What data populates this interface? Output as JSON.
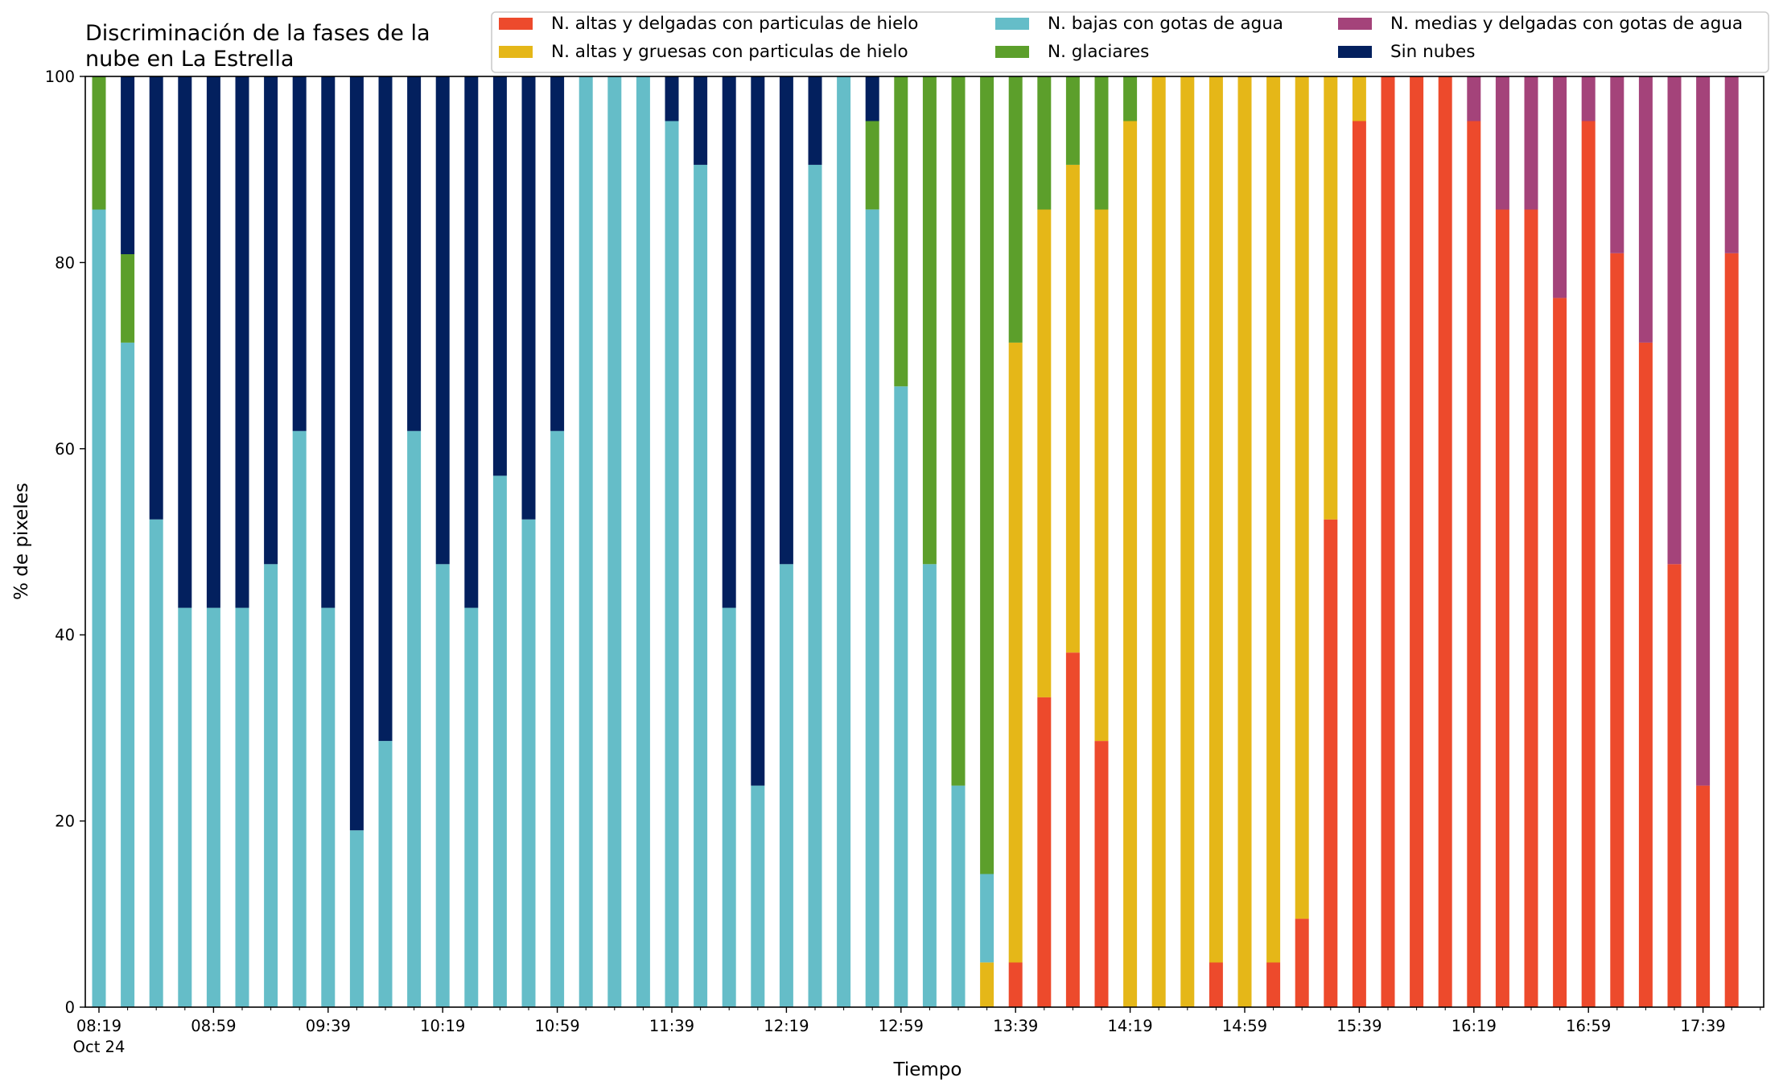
{
  "chart_data": {
    "type": "bar",
    "stacked": true,
    "title": "Discriminación de la fases de la nube en La Estrella",
    "title_lines": [
      "Discriminación de la fases de la",
      "nube en La Estrella"
    ],
    "xlabel": "Tiempo",
    "ylabel": "% de pixeles",
    "ylim": [
      0,
      100
    ],
    "yticks": [
      "0",
      "20",
      "40",
      "60",
      "80",
      "100"
    ],
    "xticks": [
      "08:19",
      "08:59",
      "09:39",
      "10:19",
      "10:59",
      "11:39",
      "12:19",
      "12:59",
      "13:39",
      "14:19",
      "14:59",
      "15:39",
      "16:19",
      "16:59",
      "17:39"
    ],
    "xtick_sub": "Oct 24",
    "grid": false,
    "legend_position": "top-right",
    "bar_interval_minutes": 10,
    "series": [
      {
        "key": "thin_ice",
        "name": "N. altas y delgadas con particulas de hielo",
        "color": "#ed4a2c"
      },
      {
        "key": "thick_ice",
        "name": "N. altas y gruesas con particulas de hielo",
        "color": "#e5b718"
      },
      {
        "key": "low_water",
        "name": "N. bajas con gotas de agua",
        "color": "#65bdc8"
      },
      {
        "key": "glacier",
        "name": "N. glaciares",
        "color": "#5c9f2b"
      },
      {
        "key": "mid_water",
        "name": "N. medias y delgadas con gotas de agua",
        "color": "#a4437a"
      },
      {
        "key": "clear",
        "name": "Sin nubes",
        "color": "#03205e"
      }
    ],
    "legend_order": [
      "thin_ice",
      "thick_ice",
      "low_water",
      "glacier",
      "mid_water",
      "clear"
    ],
    "stack_order": [
      "thin_ice",
      "thick_ice",
      "low_water",
      "glacier",
      "mid_water",
      "clear"
    ],
    "bars": [
      {
        "low_water": 85.7,
        "glacier": 14.3
      },
      {
        "low_water": 71.4,
        "glacier": 9.5,
        "clear": 19.1
      },
      {
        "low_water": 52.4,
        "clear": 47.6
      },
      {
        "low_water": 42.9,
        "clear": 57.1
      },
      {
        "low_water": 42.9,
        "clear": 57.1
      },
      {
        "low_water": 42.9,
        "clear": 57.1
      },
      {
        "low_water": 47.6,
        "clear": 52.4
      },
      {
        "low_water": 61.9,
        "clear": 38.1
      },
      {
        "low_water": 42.9,
        "clear": 57.1
      },
      {
        "low_water": 19.0,
        "clear": 81.0
      },
      {
        "low_water": 28.6,
        "clear": 71.4
      },
      {
        "low_water": 61.9,
        "clear": 38.1
      },
      {
        "low_water": 47.6,
        "clear": 52.4
      },
      {
        "low_water": 42.9,
        "clear": 57.1
      },
      {
        "low_water": 57.1,
        "clear": 42.9
      },
      {
        "low_water": 52.4,
        "clear": 47.6
      },
      {
        "low_water": 61.9,
        "clear": 38.1
      },
      {
        "low_water": 100
      },
      {
        "low_water": 100
      },
      {
        "low_water": 100
      },
      {
        "low_water": 95.2,
        "clear": 4.8
      },
      {
        "low_water": 90.5,
        "clear": 9.5
      },
      {
        "low_water": 42.9,
        "clear": 57.1
      },
      {
        "low_water": 23.8,
        "clear": 76.2
      },
      {
        "low_water": 47.6,
        "clear": 52.4
      },
      {
        "low_water": 90.5,
        "clear": 9.5
      },
      {
        "low_water": 100
      },
      {
        "low_water": 85.7,
        "glacier": 9.5,
        "clear": 4.8
      },
      {
        "low_water": 66.7,
        "glacier": 33.3
      },
      {
        "low_water": 47.6,
        "glacier": 52.4
      },
      {
        "low_water": 23.8,
        "glacier": 76.2
      },
      {
        "thick_ice": 4.8,
        "low_water": 9.5,
        "glacier": 85.7
      },
      {
        "thin_ice": 4.8,
        "thick_ice": 66.6,
        "glacier": 28.6
      },
      {
        "thin_ice": 33.3,
        "thick_ice": 52.4,
        "glacier": 14.3
      },
      {
        "thin_ice": 38.1,
        "thick_ice": 52.4,
        "glacier": 9.5
      },
      {
        "thin_ice": 28.6,
        "thick_ice": 57.1,
        "glacier": 14.3
      },
      {
        "thick_ice": 95.2,
        "glacier": 4.8
      },
      {
        "thick_ice": 100
      },
      {
        "thick_ice": 100
      },
      {
        "thin_ice": 4.8,
        "thick_ice": 95.2
      },
      {
        "thick_ice": 100
      },
      {
        "thin_ice": 4.8,
        "thick_ice": 95.2
      },
      {
        "thin_ice": 9.5,
        "thick_ice": 90.5
      },
      {
        "thin_ice": 52.4,
        "thick_ice": 47.6
      },
      {
        "thin_ice": 95.2,
        "thick_ice": 4.8
      },
      {
        "thin_ice": 100
      },
      {
        "thin_ice": 100
      },
      {
        "thin_ice": 100
      },
      {
        "thin_ice": 95.2,
        "mid_water": 4.8
      },
      {
        "thin_ice": 85.7,
        "mid_water": 14.3
      },
      {
        "thin_ice": 85.7,
        "mid_water": 14.3
      },
      {
        "thin_ice": 76.2,
        "mid_water": 23.8
      },
      {
        "thin_ice": 95.2,
        "mid_water": 4.8
      },
      {
        "thin_ice": 81.0,
        "mid_water": 19.0
      },
      {
        "thin_ice": 71.4,
        "mid_water": 28.6
      },
      {
        "thin_ice": 47.6,
        "mid_water": 52.4
      },
      {
        "thin_ice": 23.8,
        "mid_water": 76.2
      },
      {
        "thin_ice": 81.0,
        "mid_water": 19.0
      }
    ]
  }
}
